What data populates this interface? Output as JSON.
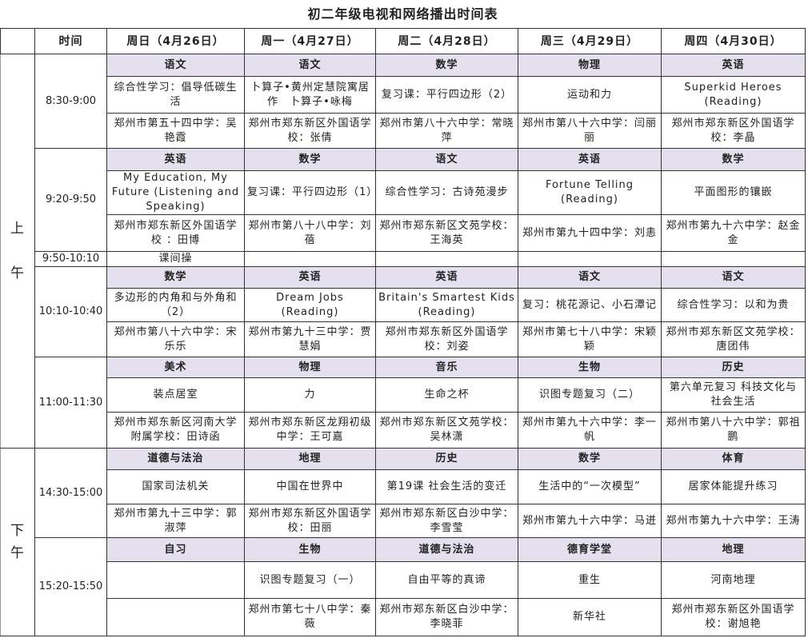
{
  "title": "初二年级电视和网络播出时间表",
  "header": [
    "时间",
    "周日（4月26日）",
    "周一（4月27日）",
    "周二（4月28日）",
    "周三（4月29日）",
    "周四（4月30日）"
  ],
  "periods": [
    {
      "label": "上\n\n午"
    },
    {
      "label": "下\n午"
    }
  ],
  "slots": [
    {
      "time": "8:30-9:00",
      "classes": [
        {
          "subject": "语文",
          "topic": "综合性学习：倡导低碳生活",
          "teacher": "郑州市第五十四中学：吴艳霞"
        },
        {
          "subject": "语文",
          "topic": "卜算子•黄州定慧院寓居作　卜算子•咏梅",
          "teacher": "郑州市郑东新区外国语学校：张倩"
        },
        {
          "subject": "数学",
          "topic": "复习课：平行四边形（2）",
          "teacher": "郑州市第八十六中学：常晓萍"
        },
        {
          "subject": "物理",
          "topic": "运动和力",
          "teacher": "郑州市第八十六中学：闫丽丽"
        },
        {
          "subject": "英语",
          "topic": "Superkid Heroes (Reading)",
          "teacher": "郑州市郑东新区外国语学校：李晶"
        }
      ]
    },
    {
      "time": "9:20-9:50",
      "classes": [
        {
          "subject": "英语",
          "topic": "My Education, My Future (Listening and Speaking)",
          "teacher": "郑州市郑东新区外国语学校 ：田博"
        },
        {
          "subject": "数学",
          "topic": "复习课：平行四边形（1）",
          "teacher": "郑州市第八十八中学：刘蓓"
        },
        {
          "subject": "语文",
          "topic": "综合性学习：古诗苑漫步",
          "teacher": "郑州市郑东新区文苑学校：王海英"
        },
        {
          "subject": "英语",
          "topic": "Fortune Telling (Reading)",
          "teacher": "郑州市第九十四中学：刘恚"
        },
        {
          "subject": "数学",
          "topic": "平面图形的镶嵌",
          "teacher": "郑州市第九十六中学：赵金金"
        }
      ]
    },
    {
      "time": "9:50-10:10",
      "break": "课间操"
    },
    {
      "time": "10:10-10:40",
      "classes": [
        {
          "subject": "数学",
          "topic": "多边形的内角和与外角和（2）",
          "teacher": "郑州市第八十六中学：宋乐乐"
        },
        {
          "subject": "英语",
          "topic": "Dream Jobs (Reading)",
          "teacher": "郑州市第九十三中学：贾慧娟"
        },
        {
          "subject": "英语",
          "topic": "Britain's Smartest Kids (Reading)",
          "teacher": "郑州市郑东新区外国语学校：刘姿"
        },
        {
          "subject": "语文",
          "topic": "复习：桃花源记、小石潭记",
          "teacher": "郑州市第七十八中学：宋颖颖"
        },
        {
          "subject": "语文",
          "topic": "综合性学习：以和为贵",
          "teacher": "郑州市郑东新区文苑学校：唐团伟"
        }
      ]
    },
    {
      "time": "11:00-11:30",
      "classes": [
        {
          "subject": "美术",
          "topic": "装点居室",
          "teacher": "郑州市郑东新区河南大学附属学校：田诗函"
        },
        {
          "subject": "物理",
          "topic": "力",
          "teacher": "郑州市郑东新区龙翔初级中学：王可嘉"
        },
        {
          "subject": "音乐",
          "topic": "生命之杯",
          "teacher": "郑州市郑东新区文苑学校：吴林潇"
        },
        {
          "subject": "生物",
          "topic": "识图专题复习（二）",
          "teacher": "郑州市第九十六中学：李一帆"
        },
        {
          "subject": "历史",
          "topic": "第六单元复习 科技文化与社会生活",
          "teacher": "郑州市第八十六中学：郭祖鹏"
        }
      ]
    },
    {
      "time": "14:30-15:00",
      "classes": [
        {
          "subject": "道德与法治",
          "topic": "国家司法机关",
          "teacher": "郑州市第九十三中学：郭淑萍"
        },
        {
          "subject": "地理",
          "topic": "中国在世界中",
          "teacher": "郑州市郑东新区外国语学校：田丽"
        },
        {
          "subject": "历史",
          "topic": "第19课 社会生活的变迁",
          "teacher": "郑州市郑东新区白沙中学：李雪莹"
        },
        {
          "subject": "数学",
          "topic": "生活中的“一次模型”",
          "teacher": "郑州市第九十六中学：马迸"
        },
        {
          "subject": "体育",
          "topic": "居家体能提升练习",
          "teacher": "郑州市第九十六中学：王涛"
        }
      ]
    },
    {
      "time": "15:20-15:50",
      "classes": [
        {
          "subject": "自习",
          "topic": "",
          "teacher": ""
        },
        {
          "subject": "生物",
          "topic": "识图专题复习（一）",
          "teacher": "郑州市第七十八中学：秦薇"
        },
        {
          "subject": "道德与法治",
          "topic": "自由平等的真谛",
          "teacher": "郑州市郑东新区白沙中学：李晓菲"
        },
        {
          "subject": "德育学堂",
          "topic": "重生",
          "teacher": "新华社"
        },
        {
          "subject": "地理",
          "topic": "河南地理",
          "teacher": "郑州市郑东新区外国语学校：谢旭艳"
        }
      ]
    }
  ],
  "colors": {
    "subject_row": "#e4e0ee",
    "border": "#333333"
  }
}
